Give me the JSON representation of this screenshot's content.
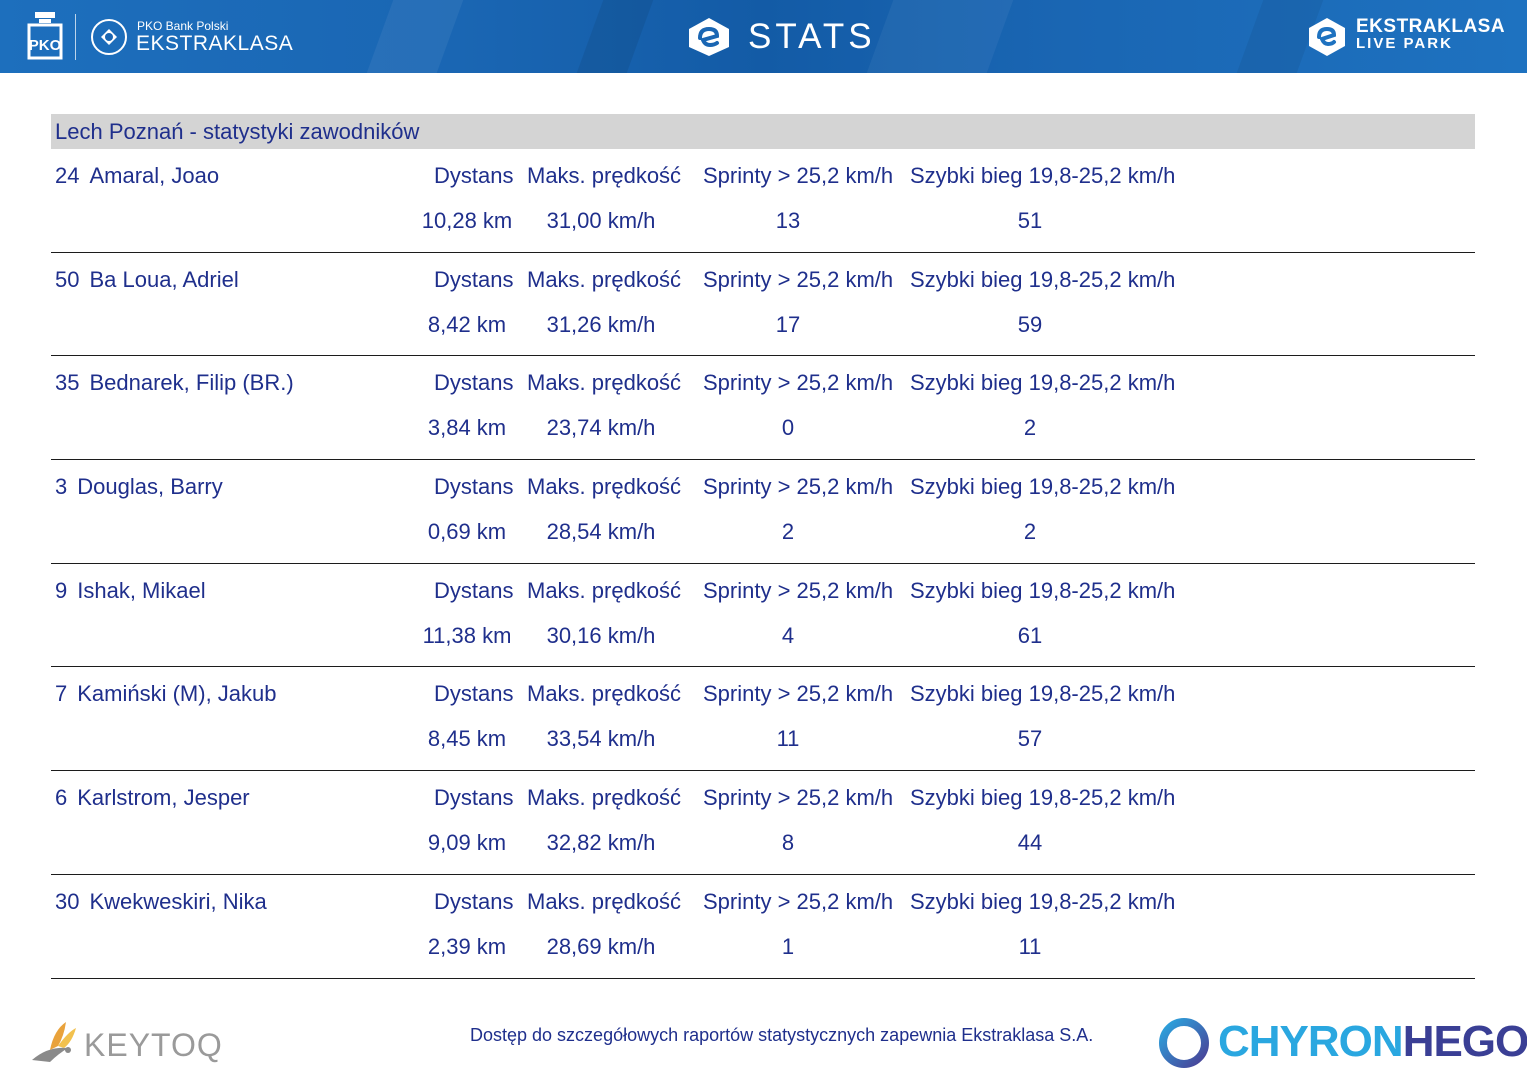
{
  "header": {
    "sponsor": "PKO Bank Polski",
    "league": "EKSTRAKLASA",
    "title": "STATS",
    "live_park_line1": "EKSTRAKLASA",
    "live_park_line2": "LIVE PARK",
    "colors": {
      "bar": "#1a66b3",
      "text": "#ffffff"
    }
  },
  "team": {
    "title": "Lech Poznań - statystyki zawodników"
  },
  "labels": {
    "distance": "Dystans",
    "max_speed": "Maks. prędkość",
    "sprints": "Sprinty > 25,2 km/h",
    "fast_run": "Szybki bieg 19,8-25,2 km/h"
  },
  "players": [
    {
      "number": "24",
      "name": "Amaral, Joao",
      "distance": "10,28 km",
      "max_speed": "31,00 km/h",
      "sprints": "13",
      "fast_run": "51"
    },
    {
      "number": "50",
      "name": "Ba Loua, Adriel",
      "distance": "8,42 km",
      "max_speed": "31,26 km/h",
      "sprints": "17",
      "fast_run": "59"
    },
    {
      "number": "35",
      "name": "Bednarek, Filip (BR.)",
      "distance": "3,84 km",
      "max_speed": "23,74 km/h",
      "sprints": "0",
      "fast_run": "2"
    },
    {
      "number": "3",
      "name": "Douglas, Barry",
      "distance": "0,69 km",
      "max_speed": "28,54 km/h",
      "sprints": "2",
      "fast_run": "2"
    },
    {
      "number": "9",
      "name": "Ishak, Mikael",
      "distance": "11,38 km",
      "max_speed": "30,16 km/h",
      "sprints": "4",
      "fast_run": "61"
    },
    {
      "number": "7",
      "name": "Kamiński (M), Jakub",
      "distance": "8,45 km",
      "max_speed": "33,54 km/h",
      "sprints": "11",
      "fast_run": "57"
    },
    {
      "number": "6",
      "name": "Karlstrom, Jesper",
      "distance": "9,09 km",
      "max_speed": "32,82 km/h",
      "sprints": "8",
      "fast_run": "44"
    },
    {
      "number": "30",
      "name": "Kwekweskiri, Nika",
      "distance": "2,39 km",
      "max_speed": "28,69 km/h",
      "sprints": "1",
      "fast_run": "11"
    }
  ],
  "footer": {
    "keytoq": "KEYTOQ",
    "note": "Dostęp do szczegółowych raportów statystycznych zapewnia Ekstraklasa S.A.",
    "chyron_part1": "CHYRON",
    "chyron_part2": "HEGO",
    "icons": [
      "keytoq-bird-icon",
      "chyronhego-swirl-icon",
      "pko-logo-icon",
      "ekstraklasa-badge-icon"
    ]
  }
}
